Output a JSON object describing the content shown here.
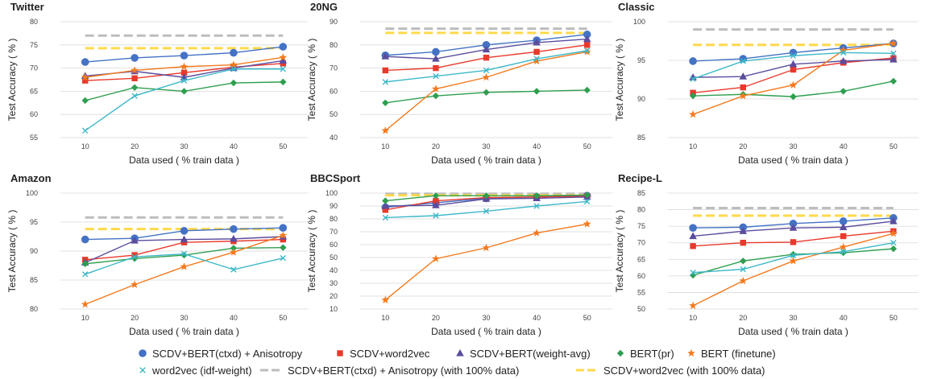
{
  "chart_data": [
    {
      "type": "line",
      "title": "Twitter",
      "xlabel": "Data used ( % train data )",
      "ylabel": "Test Accuracy ( % )",
      "x": [
        10,
        20,
        30,
        40,
        50
      ],
      "ylim": [
        55,
        80
      ],
      "yticks": [
        55,
        60,
        65,
        70,
        75,
        80
      ],
      "series": [
        {
          "key": "s1",
          "values": [
            71.3,
            72.2,
            72.7,
            73.3,
            74.6
          ]
        },
        {
          "key": "s2",
          "values": [
            67.3,
            67.8,
            69.0,
            70.2,
            71.0
          ]
        },
        {
          "key": "s3",
          "values": [
            68.3,
            69.3,
            68.0,
            70.0,
            71.6
          ]
        },
        {
          "key": "s4",
          "values": [
            63.0,
            65.8,
            65.0,
            66.8,
            67.0
          ]
        },
        {
          "key": "s5",
          "values": [
            68.0,
            69.5,
            70.3,
            70.7,
            72.3
          ]
        },
        {
          "key": "s6",
          "values": [
            56.5,
            64.0,
            67.3,
            69.8,
            69.8
          ]
        },
        {
          "key": "s7",
          "values": [
            77.0,
            77.0,
            77.0,
            77.0,
            77.0
          ]
        },
        {
          "key": "s8",
          "values": [
            74.3,
            74.3,
            74.3,
            74.3,
            74.3
          ]
        }
      ]
    },
    {
      "type": "line",
      "title": "20NG",
      "xlabel": "Data used ( % train data )",
      "ylabel": "Test Accuracy ( % )",
      "x": [
        10,
        20,
        30,
        40,
        50
      ],
      "ylim": [
        40,
        90
      ],
      "yticks": [
        40,
        50,
        60,
        70,
        80,
        90
      ],
      "series": [
        {
          "key": "s1",
          "values": [
            75.5,
            77.0,
            80.0,
            82.0,
            84.5
          ]
        },
        {
          "key": "s2",
          "values": [
            69.0,
            70.0,
            74.5,
            77.0,
            80.0
          ]
        },
        {
          "key": "s3",
          "values": [
            75.0,
            74.0,
            78.0,
            81.0,
            82.5
          ]
        },
        {
          "key": "s4",
          "values": [
            55.0,
            58.0,
            59.5,
            60.0,
            60.5
          ]
        },
        {
          "key": "s5",
          "values": [
            43.0,
            61.0,
            66.0,
            73.0,
            77.0
          ]
        },
        {
          "key": "s6",
          "values": [
            64.0,
            66.5,
            69.0,
            74.0,
            77.5
          ]
        },
        {
          "key": "s7",
          "values": [
            87.0,
            87.0,
            87.0,
            87.0,
            87.0
          ]
        },
        {
          "key": "s8",
          "values": [
            85.2,
            85.2,
            85.2,
            85.2,
            85.2
          ]
        }
      ]
    },
    {
      "type": "line",
      "title": "Classic",
      "xlabel": "Data used ( % train data )",
      "ylabel": "Test Accuracy ( % )",
      "x": [
        10,
        20,
        30,
        40,
        50
      ],
      "ylim": [
        85,
        100
      ],
      "yticks": [
        85,
        90,
        95,
        100
      ],
      "series": [
        {
          "key": "s1",
          "values": [
            94.9,
            95.2,
            96.0,
            96.6,
            97.2
          ]
        },
        {
          "key": "s2",
          "values": [
            90.8,
            91.5,
            93.8,
            94.7,
            95.3
          ]
        },
        {
          "key": "s3",
          "values": [
            92.8,
            92.9,
            94.5,
            94.9,
            95.1
          ]
        },
        {
          "key": "s4",
          "values": [
            90.4,
            90.6,
            90.3,
            91.0,
            92.3
          ]
        },
        {
          "key": "s5",
          "values": [
            88.0,
            90.4,
            91.8,
            96.3,
            97.2
          ]
        },
        {
          "key": "s6",
          "values": [
            92.6,
            94.9,
            95.6,
            96.0,
            95.9
          ]
        },
        {
          "key": "s7",
          "values": [
            99.0,
            99.0,
            99.0,
            99.0,
            99.0
          ]
        },
        {
          "key": "s8",
          "values": [
            97.0,
            97.0,
            97.0,
            97.0,
            97.0
          ]
        }
      ]
    },
    {
      "type": "line",
      "title": "Amazon",
      "xlabel": "Data used ( % train data )",
      "ylabel": "Test Accuracy ( % )",
      "x": [
        10,
        20,
        30,
        40,
        50
      ],
      "ylim": [
        80,
        100
      ],
      "yticks": [
        80,
        85,
        90,
        95,
        100
      ],
      "series": [
        {
          "key": "s1",
          "values": [
            92.0,
            92.2,
            93.5,
            93.8,
            94.0
          ]
        },
        {
          "key": "s2",
          "values": [
            88.5,
            89.3,
            91.5,
            91.7,
            92.0
          ]
        },
        {
          "key": "s3",
          "values": [
            88.0,
            91.8,
            92.0,
            92.1,
            92.5
          ]
        },
        {
          "key": "s4",
          "values": [
            87.8,
            88.7,
            89.3,
            90.5,
            90.6
          ]
        },
        {
          "key": "s5",
          "values": [
            80.8,
            84.2,
            87.3,
            89.8,
            92.7
          ]
        },
        {
          "key": "s6",
          "values": [
            86.0,
            89.0,
            89.5,
            86.8,
            88.8
          ]
        },
        {
          "key": "s7",
          "values": [
            95.8,
            95.8,
            95.8,
            95.8,
            95.8
          ]
        },
        {
          "key": "s8",
          "values": [
            93.8,
            93.8,
            93.8,
            93.8,
            93.8
          ]
        }
      ]
    },
    {
      "type": "line",
      "title": "BBCSport",
      "xlabel": "Data used ( % train data )",
      "ylabel": "Test Accuracy ( % )",
      "x": [
        10,
        20,
        30,
        40,
        50
      ],
      "ylim": [
        10,
        100
      ],
      "yticks": [
        10,
        20,
        30,
        40,
        50,
        60,
        70,
        80,
        90,
        100
      ],
      "series": [
        {
          "key": "s1",
          "values": [
            89.0,
            92.5,
            96.0,
            97.0,
            98.0
          ]
        },
        {
          "key": "s2",
          "values": [
            87.0,
            94.0,
            96.5,
            97.0,
            97.5
          ]
        },
        {
          "key": "s3",
          "values": [
            90.0,
            90.5,
            95.5,
            96.0,
            97.0
          ]
        },
        {
          "key": "s4",
          "values": [
            94.0,
            98.0,
            98.0,
            98.0,
            98.5
          ]
        },
        {
          "key": "s5",
          "values": [
            17.0,
            49.0,
            57.5,
            69.0,
            76.0
          ]
        },
        {
          "key": "s6",
          "values": [
            81.0,
            82.5,
            86.0,
            90.0,
            93.5
          ]
        },
        {
          "key": "s7",
          "values": [
            99.5,
            99.5,
            99.5,
            99.5,
            99.5
          ]
        },
        {
          "key": "s8",
          "values": [
            98.3,
            98.3,
            98.3,
            98.3,
            98.3
          ]
        }
      ]
    },
    {
      "type": "line",
      "title": "Recipe-L",
      "xlabel": "Data used ( % train data )",
      "ylabel": "Test Accuracy ( % )",
      "x": [
        10,
        20,
        30,
        40,
        50
      ],
      "ylim": [
        50,
        85
      ],
      "yticks": [
        50,
        55,
        60,
        65,
        70,
        75,
        80,
        85
      ],
      "series": [
        {
          "key": "s1",
          "values": [
            74.5,
            74.7,
            75.8,
            76.5,
            77.5
          ]
        },
        {
          "key": "s2",
          "values": [
            69.0,
            70.0,
            70.2,
            72.0,
            73.5
          ]
        },
        {
          "key": "s3",
          "values": [
            72.0,
            73.5,
            74.5,
            74.7,
            76.5
          ]
        },
        {
          "key": "s4",
          "values": [
            60.2,
            64.5,
            66.5,
            67.0,
            68.2
          ]
        },
        {
          "key": "s5",
          "values": [
            51.0,
            58.5,
            64.5,
            68.7,
            72.8
          ]
        },
        {
          "key": "s6",
          "values": [
            61.0,
            62.0,
            66.2,
            67.3,
            70.0
          ]
        },
        {
          "key": "s7",
          "values": [
            80.5,
            80.5,
            80.5,
            80.5,
            80.5
          ]
        },
        {
          "key": "s8",
          "values": [
            78.2,
            78.2,
            78.2,
            78.2,
            78.2
          ]
        }
      ]
    }
  ],
  "legend": [
    {
      "key": "s1",
      "name": "SCDV+BERT(ctxd) + Anisotropy",
      "color": "#4472C4",
      "marker": "circle",
      "dash": false
    },
    {
      "key": "s2",
      "name": "SCDV+word2vec",
      "color": "#E8392C",
      "marker": "square",
      "dash": false
    },
    {
      "key": "s3",
      "name": "SCDV+BERT(weight-avg)",
      "color": "#5B4C9E",
      "marker": "triangle",
      "dash": false
    },
    {
      "key": "s4",
      "name": "BERT(pr)",
      "color": "#2E9E4F",
      "marker": "diamond",
      "dash": false
    },
    {
      "key": "s5",
      "name": "BERT (finetune)",
      "color": "#F37A1F",
      "marker": "star",
      "dash": false
    },
    {
      "key": "s6",
      "name": "word2vec (idf-weight)",
      "color": "#3DB8C8",
      "marker": "x",
      "dash": false
    },
    {
      "key": "s7",
      "name": "SCDV+BERT(ctxd) + Anisotropy (with 100% data)",
      "color": "#BDBDBD",
      "marker": "none",
      "dash": true
    },
    {
      "key": "s8",
      "name": "SCDV+word2vec (with 100% data)",
      "color": "#FFD94A",
      "marker": "none",
      "dash": true
    }
  ]
}
